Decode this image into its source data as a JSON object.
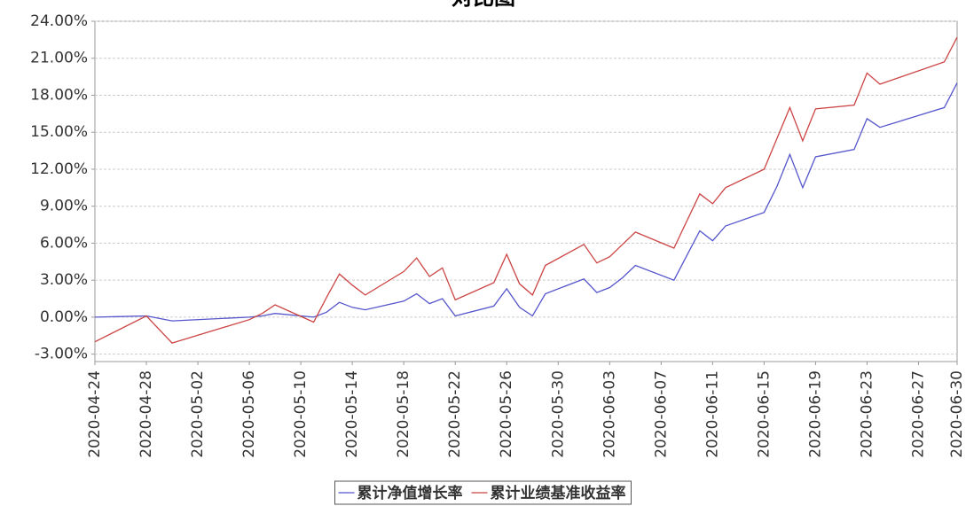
{
  "chart_data": {
    "type": "line",
    "title": "对比图",
    "x": [
      "2020-04-24",
      "2020-04-28",
      "2020-04-30",
      "2020-05-06",
      "2020-05-07",
      "2020-05-08",
      "2020-05-11",
      "2020-05-12",
      "2020-05-13",
      "2020-05-14",
      "2020-05-15",
      "2020-05-18",
      "2020-05-19",
      "2020-05-20",
      "2020-05-21",
      "2020-05-22",
      "2020-05-25",
      "2020-05-26",
      "2020-05-27",
      "2020-05-28",
      "2020-05-29",
      "2020-06-01",
      "2020-06-02",
      "2020-06-03",
      "2020-06-04",
      "2020-06-05",
      "2020-06-08",
      "2020-06-09",
      "2020-06-10",
      "2020-06-11",
      "2020-06-12",
      "2020-06-15",
      "2020-06-16",
      "2020-06-17",
      "2020-06-18",
      "2020-06-19",
      "2020-06-22",
      "2020-06-23",
      "2020-06-24",
      "2020-06-29",
      "2020-06-30"
    ],
    "series": [
      {
        "name": "累计净值增长率",
        "color": "#5555cc",
        "values": [
          0.0,
          0.1,
          -0.3,
          0.0,
          0.1,
          0.3,
          0.0,
          0.4,
          1.2,
          0.8,
          0.6,
          1.3,
          1.9,
          1.1,
          1.5,
          0.1,
          0.9,
          2.3,
          0.8,
          0.1,
          1.9,
          3.1,
          2.0,
          2.4,
          3.2,
          4.2,
          3.0,
          5.0,
          7.0,
          6.2,
          7.4,
          8.5,
          10.6,
          13.2,
          10.5,
          13.0,
          13.6,
          16.1,
          15.4,
          17.0,
          19.0
        ]
      },
      {
        "name": "累计业绩基准收益率",
        "color": "#cc4444",
        "values": [
          -2.0,
          0.1,
          -2.1,
          -0.2,
          0.3,
          1.0,
          -0.4,
          1.6,
          3.5,
          2.6,
          1.8,
          3.7,
          4.8,
          3.3,
          4.0,
          1.4,
          2.8,
          5.1,
          2.7,
          1.8,
          4.2,
          5.9,
          4.4,
          4.9,
          5.9,
          6.9,
          5.6,
          7.8,
          10.0,
          9.2,
          10.5,
          12.0,
          14.5,
          17.0,
          14.3,
          16.9,
          17.2,
          19.8,
          18.9,
          20.7,
          22.7
        ]
      }
    ],
    "xlim": [
      "2020-04-24",
      "2020-06-30"
    ],
    "xticks": [
      "2020-04-24",
      "2020-04-28",
      "2020-05-02",
      "2020-05-06",
      "2020-05-10",
      "2020-05-14",
      "2020-05-18",
      "2020-05-22",
      "2020-05-26",
      "2020-05-30",
      "2020-06-03",
      "2020-06-07",
      "2020-06-11",
      "2020-06-15",
      "2020-06-19",
      "2020-06-23",
      "2020-06-27",
      "2020-06-30"
    ],
    "ylim": [
      -3.6,
      24
    ],
    "yticks": [
      {
        "value": -3,
        "label": "-3.00%"
      },
      {
        "value": 0,
        "label": "0.00%"
      },
      {
        "value": 3,
        "label": "3.00%"
      },
      {
        "value": 6,
        "label": "6.00%"
      },
      {
        "value": 9,
        "label": "9.00%"
      },
      {
        "value": 12,
        "label": "12.00%"
      },
      {
        "value": 15,
        "label": "15.00%"
      },
      {
        "value": 18,
        "label": "18.00%"
      },
      {
        "value": 21,
        "label": "21.00%"
      },
      {
        "value": 24,
        "label": "24.00%"
      }
    ],
    "grid": true
  }
}
